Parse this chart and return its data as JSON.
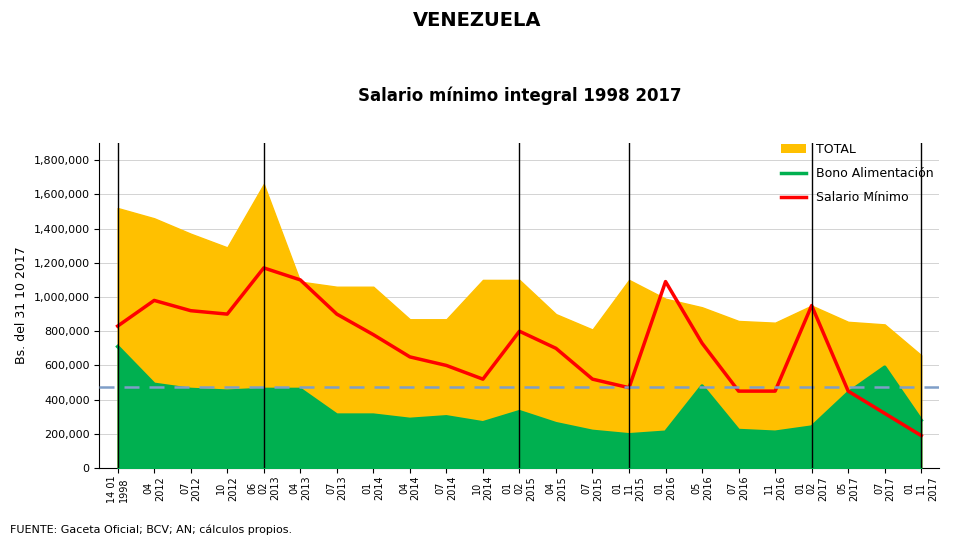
{
  "title1": "VENEZUELA",
  "title2": "Salario mínimo integral 1998 2017",
  "ylabel": "Bs. del 31 10 2017",
  "source": "FUENTE: Gaceta Oficial; BCV; AN; cálculos propios.",
  "ylim": [
    0,
    1900000
  ],
  "yticks": [
    0,
    200000,
    400000,
    600000,
    800000,
    1000000,
    1200000,
    1400000,
    1600000,
    1800000
  ],
  "dashed_line_value": 475000,
  "x_labels": [
    "14 01\n1998",
    "04\n2012",
    "07\n2012",
    "10\n2012",
    "06\n02\n2013",
    "04\n2013",
    "07\n2013",
    "01\n2014",
    "04\n2014",
    "07\n2014",
    "10\n2014",
    "01\n02\n2015",
    "04\n2015",
    "07\n2015",
    "01\n11\n2015",
    "01\n2016",
    "05\n2016",
    "07\n2016",
    "11\n2016",
    "01\n02\n2017",
    "05\n2017",
    "07\n2017",
    "01\n11\n2017"
  ],
  "salario_minimo": [
    830000,
    980000,
    920000,
    900000,
    1170000,
    1100000,
    900000,
    780000,
    650000,
    600000,
    520000,
    800000,
    700000,
    520000,
    470000,
    1090000,
    730000,
    450000,
    450000,
    950000,
    450000,
    320000,
    190000
  ],
  "bono_alimentacion": [
    710000,
    490000,
    460000,
    450000,
    460000,
    460000,
    310000,
    310000,
    285000,
    300000,
    265000,
    330000,
    260000,
    215000,
    195000,
    210000,
    480000,
    220000,
    210000,
    240000,
    440000,
    590000,
    280000
  ],
  "total": [
    1520000,
    1460000,
    1370000,
    1290000,
    1660000,
    1090000,
    1060000,
    1060000,
    870000,
    870000,
    1100000,
    1100000,
    900000,
    810000,
    1100000,
    990000,
    940000,
    860000,
    850000,
    950000,
    855000,
    840000,
    660000
  ],
  "color_total": "#FFC000",
  "color_bono": "#00B050",
  "color_salario": "#FF0000",
  "color_dashed": "#7F9EC8",
  "vline_color": "#000000",
  "background_color": "#FFFFFF",
  "legend_labels": [
    "TOTAL",
    "Bono Alimentación",
    "Salario Mínimo"
  ],
  "vline_indices": [
    0,
    4,
    11,
    14,
    19,
    22
  ]
}
